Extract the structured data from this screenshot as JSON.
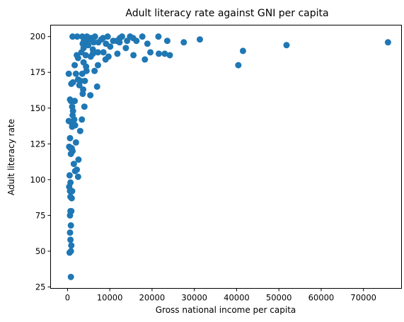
{
  "chart_data": {
    "type": "scatter",
    "title": "Adult literacy rate against GNI per capita",
    "xlabel": "Gross national income per capita",
    "ylabel": "Adult literacy rate",
    "xlim": [
      -4000,
      79000
    ],
    "ylim": [
      24,
      208
    ],
    "xticks": [
      0,
      10000,
      20000,
      30000,
      40000,
      50000,
      60000,
      70000
    ],
    "yticks": [
      25,
      50,
      75,
      100,
      125,
      150,
      175,
      200
    ],
    "grid": false,
    "legend": "none",
    "marker_color": "#1f77b4",
    "series": [
      {
        "points": [
          [
            800,
            32
          ],
          [
            500,
            49
          ],
          [
            800,
            50
          ],
          [
            900,
            54
          ],
          [
            700,
            58
          ],
          [
            600,
            63
          ],
          [
            800,
            68
          ],
          [
            600,
            75
          ],
          [
            900,
            78
          ],
          [
            700,
            78
          ],
          [
            1000,
            87
          ],
          [
            700,
            88
          ],
          [
            600,
            92
          ],
          [
            1100,
            92
          ],
          [
            400,
            95
          ],
          [
            700,
            98
          ],
          [
            500,
            103
          ],
          [
            2500,
            102
          ],
          [
            1800,
            106
          ],
          [
            2200,
            107
          ],
          [
            1500,
            111
          ],
          [
            2600,
            114
          ],
          [
            800,
            118
          ],
          [
            1200,
            120
          ],
          [
            400,
            123
          ],
          [
            700,
            122
          ],
          [
            1000,
            122
          ],
          [
            2000,
            126
          ],
          [
            600,
            129
          ],
          [
            3000,
            134
          ],
          [
            1100,
            137
          ],
          [
            1800,
            138
          ],
          [
            900,
            140
          ],
          [
            300,
            141
          ],
          [
            1600,
            142
          ],
          [
            1200,
            145
          ],
          [
            3400,
            142
          ],
          [
            1300,
            148
          ],
          [
            1100,
            151
          ],
          [
            4000,
            151
          ],
          [
            1700,
            155
          ],
          [
            800,
            155
          ],
          [
            600,
            156
          ],
          [
            3600,
            160
          ],
          [
            5400,
            159
          ],
          [
            3700,
            163
          ],
          [
            900,
            167
          ],
          [
            2800,
            166
          ],
          [
            3100,
            169
          ],
          [
            2500,
            170
          ],
          [
            4100,
            169
          ],
          [
            7000,
            165
          ],
          [
            1300,
            168
          ],
          [
            300,
            174
          ],
          [
            2000,
            174
          ],
          [
            3500,
            174
          ],
          [
            4500,
            176
          ],
          [
            6400,
            176
          ],
          [
            1700,
            180
          ],
          [
            4400,
            179
          ],
          [
            7200,
            180
          ],
          [
            2500,
            185
          ],
          [
            3800,
            182
          ],
          [
            9000,
            184
          ],
          [
            4300,
            187
          ],
          [
            5500,
            186
          ],
          [
            6000,
            188
          ],
          [
            2200,
            187
          ],
          [
            3300,
            189
          ],
          [
            7200,
            189
          ],
          [
            8500,
            189
          ],
          [
            9700,
            186
          ],
          [
            11800,
            188
          ],
          [
            13800,
            192
          ],
          [
            3800,
            192
          ],
          [
            6000,
            191
          ],
          [
            10100,
            193
          ],
          [
            15600,
            187
          ],
          [
            19600,
            189
          ],
          [
            18300,
            184
          ],
          [
            21600,
            188
          ],
          [
            23000,
            188
          ],
          [
            24200,
            187
          ],
          [
            1200,
            200
          ],
          [
            2300,
            200
          ],
          [
            3500,
            200
          ],
          [
            4600,
            200
          ],
          [
            5600,
            199
          ],
          [
            6500,
            200
          ],
          [
            8400,
            199
          ],
          [
            9500,
            200
          ],
          [
            12400,
            199
          ],
          [
            12900,
            200
          ],
          [
            14800,
            200
          ],
          [
            15500,
            199
          ],
          [
            17700,
            200
          ],
          [
            21500,
            200
          ],
          [
            3900,
            197
          ],
          [
            4400,
            196
          ],
          [
            5200,
            198
          ],
          [
            7300,
            196
          ],
          [
            8000,
            198
          ],
          [
            10800,
            197
          ],
          [
            11600,
            197
          ],
          [
            14100,
            197
          ],
          [
            16300,
            197
          ],
          [
            18900,
            195
          ],
          [
            23600,
            197
          ],
          [
            27500,
            196
          ],
          [
            31300,
            198
          ],
          [
            3600,
            195
          ],
          [
            4900,
            194
          ],
          [
            6200,
            196
          ],
          [
            9100,
            195
          ],
          [
            12300,
            196
          ],
          [
            40400,
            180
          ],
          [
            41500,
            190
          ],
          [
            51800,
            194
          ],
          [
            75800,
            196
          ]
        ]
      }
    ]
  }
}
